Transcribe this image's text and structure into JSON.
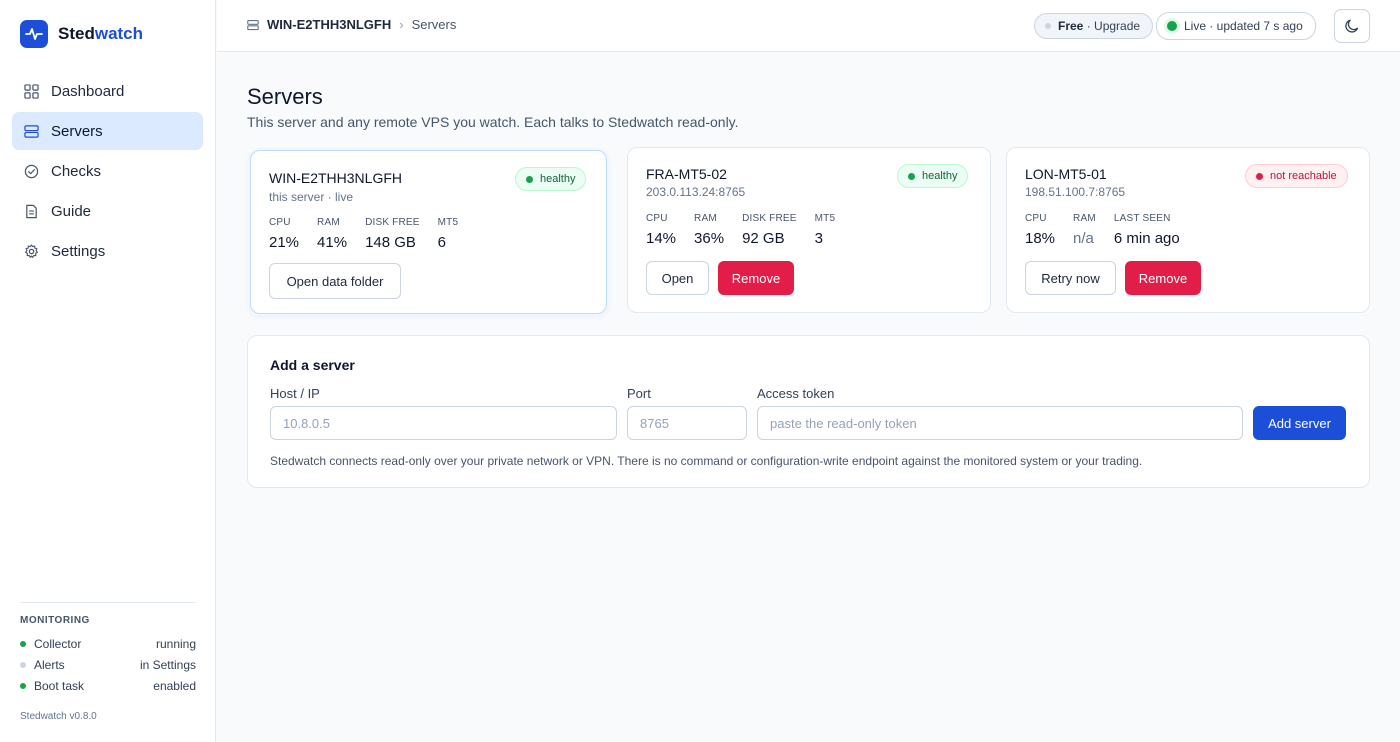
{
  "brand": {
    "name_prefix": "Sted",
    "name_accent": "watch"
  },
  "sidebar": {
    "nav": [
      {
        "label": "Dashboard",
        "icon": "grid-icon"
      },
      {
        "label": "Servers",
        "icon": "server-icon",
        "active": true
      },
      {
        "label": "Checks",
        "icon": "check-circle-icon"
      },
      {
        "label": "Guide",
        "icon": "document-icon"
      },
      {
        "label": "Settings",
        "icon": "gear-icon"
      }
    ],
    "monitoring": {
      "title": "MONITORING",
      "rows": [
        {
          "name": "Collector",
          "status": "running",
          "color": "#16a34a"
        },
        {
          "name": "Alerts",
          "status": "in Settings",
          "color": "#cbd5e1"
        },
        {
          "name": "Boot task",
          "status": "enabled",
          "color": "#16a34a"
        }
      ]
    },
    "version": "Stedwatch v0.8.0"
  },
  "topbar": {
    "host": "WIN-E2THH3NLGFH",
    "page": "Servers",
    "plan_free": "Free",
    "plan_upgrade": "· Upgrade",
    "live_status": "Live · updated 7 s ago"
  },
  "main": {
    "title": "Servers",
    "subtitle": "This server and any remote VPS you watch. Each talks to Stedwatch read-only."
  },
  "servers": [
    {
      "name": "WIN-E2THH3NLGFH",
      "meta": "this server · live",
      "status": "healthy",
      "stats": [
        {
          "label": "CPU",
          "value": "21%"
        },
        {
          "label": "RAM",
          "value": "41%"
        },
        {
          "label": "DISK FREE",
          "value": "148 GB"
        },
        {
          "label": "MT5",
          "value": "6"
        }
      ],
      "action_primary": "Open data folder"
    },
    {
      "name": "FRA-MT5-02",
      "meta": "203.0.113.24:8765",
      "status": "healthy",
      "stats": [
        {
          "label": "CPU",
          "value": "14%"
        },
        {
          "label": "RAM",
          "value": "36%"
        },
        {
          "label": "DISK FREE",
          "value": "92 GB"
        },
        {
          "label": "MT5",
          "value": "3"
        }
      ],
      "action_primary": "Open",
      "action_remove": "Remove"
    },
    {
      "name": "LON-MT5-01",
      "meta": "198.51.100.7:8765",
      "status": "not reachable",
      "stats": [
        {
          "label": "CPU",
          "value": "18%"
        },
        {
          "label": "RAM",
          "value": "n/a"
        },
        {
          "label": "LAST SEEN",
          "value": "6 min ago"
        }
      ],
      "action_primary": "Retry now",
      "action_remove": "Remove"
    }
  ],
  "add_server": {
    "title": "Add a server",
    "host_label": "Host / IP",
    "host_placeholder": "10.8.0.5",
    "port_label": "Port",
    "port_placeholder": "8765",
    "token_label": "Access token",
    "token_placeholder": "paste the read-only token",
    "submit": "Add server",
    "note": "Stedwatch connects read-only over your private network or VPN. There is no command or configuration-write endpoint against the monitored system or your trading."
  },
  "colors": {
    "accent": "#1d4ed8",
    "healthy": "#16a34a",
    "danger": "#e11d48"
  }
}
